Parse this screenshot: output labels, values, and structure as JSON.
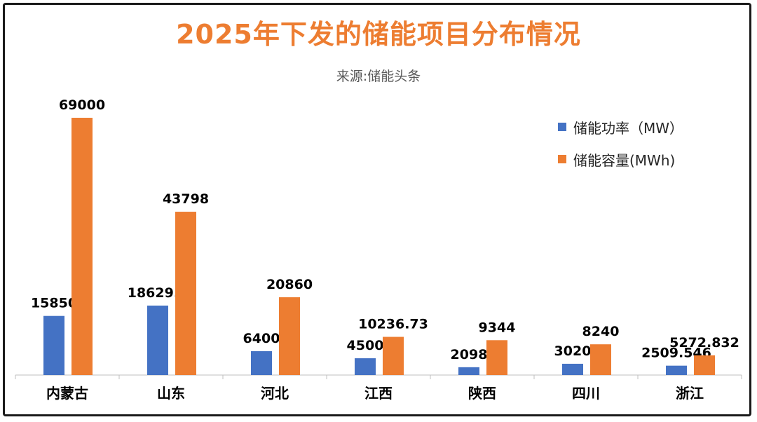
{
  "title": "2025年下发的储能项目分布情况",
  "subtitle": "来源:储能头条",
  "chart_data": {
    "type": "bar",
    "categories": [
      "内蒙古",
      "山东",
      "河北",
      "江西",
      "陕西",
      "四川",
      "浙江"
    ],
    "series": [
      {
        "name": "储能功率（MW）",
        "color": "#4472C4",
        "values": [
          15850,
          18629.2,
          6400,
          4500,
          2098,
          3020,
          2509.546
        ]
      },
      {
        "name": "储能容量(MWh)",
        "color": "#ED7D31",
        "values": [
          69000,
          43798,
          20860,
          10236.73,
          9344,
          8240,
          5272.832
        ]
      }
    ],
    "data_labels": [
      [
        "15850",
        "18629.2",
        "6400",
        "4500",
        "2098",
        "3020",
        "2509.546"
      ],
      [
        "69000",
        "43798",
        "20860",
        "10236.73",
        "9344",
        "8240",
        "5272.832"
      ]
    ],
    "ylim": [
      0,
      75000
    ],
    "grid": false,
    "legend_position": "right"
  }
}
